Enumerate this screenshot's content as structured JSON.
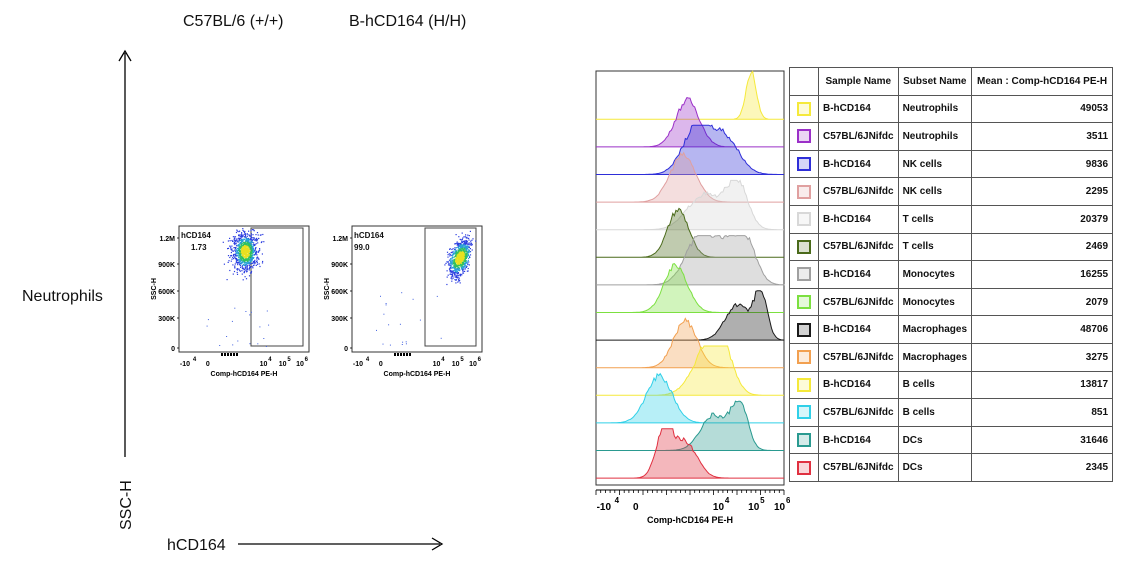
{
  "column_headers": [
    "C57BL/6 (+/+)",
    "B-hCD164 (H/H)"
  ],
  "row_label": "Neutrophils",
  "axis_labels": {
    "y": "SSC-H",
    "x": "hCD164"
  },
  "dot_plots": [
    {
      "gate_label": "hCD164",
      "gate_percent": "1.73",
      "center_x": 2.3,
      "center_y": 0.8
    },
    {
      "gate_label": "hCD164",
      "gate_percent": "99.0",
      "center_x": 4.7,
      "center_y": 0.75
    }
  ],
  "dot_plot_axes": {
    "y_ticks": [
      "1.2M",
      "900K",
      "600K",
      "300K",
      "0"
    ],
    "y_label": "SSC-H",
    "x_ticks": [
      "-10",
      "0",
      "10",
      "10",
      "10"
    ],
    "x_tick_superscripts": [
      "4",
      "",
      "4",
      "5",
      "6"
    ],
    "x_label": "Comp-hCD164 PE-H"
  },
  "histogram_axes": {
    "x_ticks": [
      "-10",
      "0",
      "10",
      "10",
      "10"
    ],
    "x_tick_superscripts": [
      "4",
      "",
      "4",
      "5",
      "6"
    ],
    "x_label": "Comp-hCD164 PE-H"
  },
  "chart_data": {
    "type": "histogram-overlay",
    "x_range": [
      -2,
      6
    ],
    "table_headers": [
      "Sample Name",
      "Subset Name",
      "Mean : Comp-hCD164 PE-H"
    ],
    "rows": [
      {
        "sample": "B-hCD164",
        "subset": "Neutrophils",
        "mean": "49053",
        "color": "#F5E93A",
        "peaks": [
          [
            4.6,
            0.22
          ]
        ]
      },
      {
        "sample": "C57BL/6JNifdc",
        "subset": "Neutrophils",
        "mean": "3511",
        "color": "#9B30C8",
        "peaks": [
          [
            1.9,
            0.5
          ]
        ]
      },
      {
        "sample": "B-hCD164",
        "subset": "NK cells",
        "mean": "9836",
        "color": "#2E2ED8",
        "peaks": [
          [
            2.3,
            0.6
          ],
          [
            3.5,
            0.6
          ]
        ]
      },
      {
        "sample": "C57BL/6JNifdc",
        "subset": "NK cells",
        "mean": "2295",
        "color": "#E0A0A0",
        "peaks": [
          [
            1.7,
            0.55
          ]
        ]
      },
      {
        "sample": "B-hCD164",
        "subset": "T cells",
        "mean": "20379",
        "color": "#D8D8D8",
        "peaks": [
          [
            4.0,
            0.45
          ],
          [
            2.6,
            0.7
          ]
        ]
      },
      {
        "sample": "C57BL/6JNifdc",
        "subset": "T cells",
        "mean": "2469",
        "color": "#4A6A1A",
        "peaks": [
          [
            1.5,
            0.45
          ]
        ]
      },
      {
        "sample": "B-hCD164",
        "subset": "Monocytes",
        "mean": "16255",
        "color": "#A0A0A0",
        "peaks": [
          [
            2.4,
            0.6
          ],
          [
            3.6,
            0.6
          ],
          [
            4.4,
            0.45
          ]
        ]
      },
      {
        "sample": "C57BL/6JNifdc",
        "subset": "Monocytes",
        "mean": "2079",
        "color": "#7CE040",
        "peaks": [
          [
            1.4,
            0.5
          ]
        ]
      },
      {
        "sample": "B-hCD164",
        "subset": "Macrophages",
        "mean": "48706",
        "color": "#1A1A1A",
        "peaks": [
          [
            5.0,
            0.28
          ],
          [
            4.0,
            0.5
          ]
        ]
      },
      {
        "sample": "C57BL/6JNifdc",
        "subset": "Macrophages",
        "mean": "3275",
        "color": "#F2A050",
        "peaks": [
          [
            1.8,
            0.5
          ]
        ]
      },
      {
        "sample": "B-hCD164",
        "subset": "B cells",
        "mean": "13817",
        "color": "#F5E93A",
        "peaks": [
          [
            3.3,
            0.5
          ],
          [
            2.6,
            0.6
          ]
        ]
      },
      {
        "sample": "C57BL/6JNifdc",
        "subset": "B cells",
        "mean": "851",
        "color": "#30D0E8",
        "peaks": [
          [
            0.7,
            0.55
          ]
        ]
      },
      {
        "sample": "B-hCD164",
        "subset": "DCs",
        "mean": "31646",
        "color": "#2A9A90",
        "peaks": [
          [
            4.1,
            0.35
          ],
          [
            3.0,
            0.55
          ]
        ]
      },
      {
        "sample": "C57BL/6JNifdc",
        "subset": "DCs",
        "mean": "2345",
        "color": "#E03040",
        "peaks": [
          [
            0.9,
            0.35
          ],
          [
            1.8,
            0.5
          ]
        ]
      }
    ]
  }
}
